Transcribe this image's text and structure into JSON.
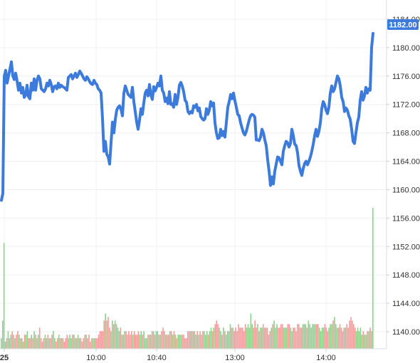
{
  "chart_data": {
    "type": "line",
    "price_axis": {
      "ticks": [
        "1184.00",
        "1180.00",
        "1176.00",
        "1172.00",
        "1168.00",
        "1164.00",
        "1160.00",
        "1156.00",
        "1152.00",
        "1148.00",
        "1144.00",
        "1140.00"
      ],
      "ylim": [
        1138.8,
        1185.4
      ]
    },
    "x_ticks": [
      "25",
      "10:00",
      "10:40",
      "13:00",
      "14:00"
    ],
    "last_price_label": "1182.00",
    "price_series": [
      1158.5,
      1159.5,
      1176.0,
      1176.8,
      1175.0,
      1176.0,
      1177.0,
      1178.0,
      1176.0,
      1175.5,
      1176.4,
      1175.3,
      1174.0,
      1175.0,
      1173.6,
      1174.4,
      1173.0,
      1173.3,
      1174.7,
      1173.1,
      1172.8,
      1175.0,
      1174.0,
      1175.6,
      1174.0,
      1175.4,
      1176.0,
      1175.6,
      1174.2,
      1174.0,
      1173.8,
      1174.2,
      1175.0,
      1174.6,
      1175.4,
      1174.8,
      1173.8,
      1174.5,
      1174.6,
      1174.2,
      1175.0,
      1174.4,
      1174.7,
      1174.5,
      1174.4,
      1174.2,
      1174.0,
      1175.8,
      1176.0,
      1176.2,
      1175.6,
      1176.0,
      1176.4,
      1175.8,
      1176.2,
      1176.7,
      1176.4,
      1176.0,
      1175.6,
      1175.4,
      1175.9,
      1175.6,
      1175.2,
      1174.9,
      1174.8,
      1175.4,
      1175.0,
      1174.8,
      1174.2,
      1174.0,
      1173.6,
      1170.0,
      1165.4,
      1166.8,
      1165.0,
      1164.6,
      1163.6,
      1166.6,
      1169.5,
      1168.0,
      1169.9,
      1171.2,
      1171.6,
      1171.8,
      1171.3,
      1170.4,
      1173.6,
      1174.6,
      1174.0,
      1173.4,
      1173.2,
      1173.0,
      1174.4,
      1172.4,
      1171.0,
      1169.5,
      1168.5,
      1169.8,
      1171.4,
      1170.6,
      1172.2,
      1173.6,
      1174.0,
      1173.2,
      1174.8,
      1173.3,
      1172.7,
      1174.5,
      1173.9,
      1174.4,
      1175.0,
      1174.6,
      1176.0,
      1174.0,
      1173.6,
      1172.4,
      1172.9,
      1172.1,
      1173.8,
      1172.0,
      1172.1,
      1171.6,
      1173.4,
      1172.0,
      1173.0,
      1174.7,
      1175.1,
      1174.6,
      1173.8,
      1172.6,
      1172.3,
      1171.0,
      1170.7,
      1171.0,
      1170.8,
      1171.8,
      1171.6,
      1172.0,
      1171.1,
      1171.5,
      1170.3,
      1170.0,
      1169.8,
      1170.0,
      1171.4,
      1170.6,
      1171.2,
      1172.4,
      1171.8,
      1172.2,
      1169.4,
      1168.0,
      1167.2,
      1167.3,
      1168.5,
      1167.6,
      1168.2,
      1167.4,
      1169.5,
      1171.6,
      1172.4,
      1173.4,
      1172.8,
      1173.6,
      1172.5,
      1171.6,
      1170.6,
      1170.4,
      1169.4,
      1168.7,
      1168.0,
      1167.7,
      1168.2,
      1169.0,
      1169.8,
      1170.4,
      1170.6,
      1170.5,
      1170.2,
      1167.0,
      1167.0,
      1166.9,
      1167.4,
      1168.5,
      1168.0,
      1167.0,
      1166.2,
      1164.2,
      1162.6,
      1160.6,
      1161.8,
      1160.8,
      1162.6,
      1163.6,
      1164.6,
      1164.5,
      1164.0,
      1163.5,
      1165.4,
      1166.2,
      1166.8,
      1166.6,
      1166.0,
      1166.5,
      1168.5,
      1167.6,
      1166.4,
      1166.2,
      1165.2,
      1163.4,
      1162.6,
      1162.0,
      1163.0,
      1163.7,
      1164.0,
      1163.5,
      1164.0,
      1164.6,
      1165.4,
      1166.4,
      1167.6,
      1168.5,
      1167.5,
      1168.2,
      1169.4,
      1171.4,
      1172.4,
      1172.0,
      1171.2,
      1170.7,
      1171.6,
      1173.6,
      1174.6,
      1173.8,
      1174.2,
      1175.1,
      1176.0,
      1175.6,
      1174.6,
      1173.0,
      1172.4,
      1171.0,
      1171.5,
      1171.2,
      1170.4,
      1169.9,
      1168.5,
      1166.8,
      1166.5,
      1168.0,
      1169.4,
      1170.2,
      1172.6,
      1173.8,
      1172.6,
      1173.2,
      1174.4,
      1173.6,
      1174.2,
      1174.0,
      1180.0,
      1182.0
    ],
    "volume_series": [
      3,
      8,
      30,
      2,
      3,
      5,
      3,
      4,
      5,
      4,
      3,
      4,
      5,
      4,
      3,
      3,
      2,
      4,
      4,
      5,
      3,
      3,
      4,
      3,
      5,
      4,
      3,
      4,
      6,
      3,
      2,
      3,
      4,
      3,
      4,
      3,
      3,
      4,
      5,
      3,
      2,
      3,
      4,
      3,
      3,
      3,
      2,
      3,
      4,
      3,
      4,
      3,
      4,
      4,
      3,
      3,
      4,
      3,
      3,
      2,
      3,
      4,
      4,
      3,
      4,
      2,
      3,
      3,
      3,
      3,
      3,
      4,
      5,
      5,
      5,
      8,
      10,
      8,
      9,
      6,
      5,
      8,
      7,
      8,
      7,
      6,
      5,
      6,
      4,
      4,
      5,
      5,
      4,
      5,
      4,
      5,
      4,
      5,
      4,
      4,
      5,
      4,
      5,
      4,
      5,
      3,
      3,
      4,
      4,
      4,
      5,
      5,
      4,
      5,
      5,
      4,
      4,
      5,
      6,
      5,
      4,
      4,
      4,
      5,
      5,
      4,
      5,
      4,
      3,
      4,
      4,
      4,
      4,
      4,
      3,
      3,
      5,
      5,
      5,
      5,
      5,
      5,
      4,
      5,
      4,
      5,
      4,
      5,
      5,
      4,
      5,
      4,
      5,
      6,
      5,
      6,
      7,
      8,
      7,
      6,
      5,
      4,
      6,
      5,
      4,
      5,
      5,
      7,
      6,
      6,
      5,
      6,
      5,
      7,
      6,
      6,
      6,
      5,
      7,
      6,
      7,
      6,
      10,
      7,
      6,
      8,
      6,
      7,
      5,
      6,
      6,
      7,
      6,
      6,
      6,
      4,
      5,
      6,
      7,
      8,
      6,
      7,
      6,
      6,
      7,
      7,
      6,
      6,
      6,
      7,
      7,
      6,
      5,
      6,
      6,
      5,
      7,
      7,
      6,
      6,
      7,
      7,
      7,
      6,
      8,
      7,
      6,
      7,
      7,
      7,
      7,
      7,
      6,
      5,
      6,
      6,
      7,
      6,
      5,
      6,
      7,
      7,
      8,
      9,
      7,
      6,
      6,
      7,
      6,
      5,
      6,
      6,
      7,
      6,
      8,
      9,
      8,
      7,
      6,
      5,
      6,
      5,
      6,
      4,
      5,
      4,
      4,
      5,
      5,
      6,
      5,
      40
    ],
    "colors": {
      "line": "#3c7bdc",
      "badge": "#3c7bdc",
      "vol_up": "#8fd08a",
      "vol_down": "#f39a9a"
    }
  }
}
